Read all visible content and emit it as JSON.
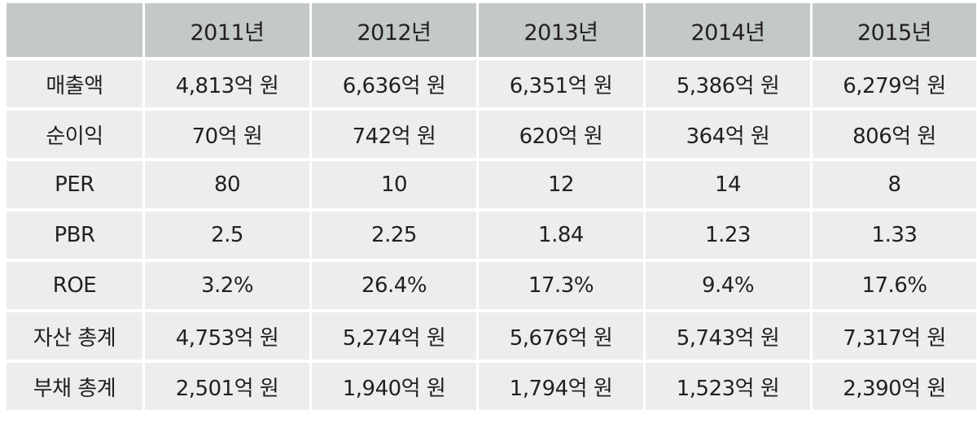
{
  "table": {
    "columns": [
      "",
      "2011년",
      "2012년",
      "2013년",
      "2014년",
      "2015년"
    ],
    "rows": [
      {
        "label": "매출액",
        "values": [
          "4,813억 원",
          "6,636억 원",
          "6,351억 원",
          "5,386억 원",
          "6,279억 원"
        ]
      },
      {
        "label": "순이익",
        "values": [
          "70억 원",
          "742억 원",
          "620억 원",
          "364억 원",
          "806억 원"
        ]
      },
      {
        "label": "PER",
        "values": [
          "80",
          "10",
          "12",
          "14",
          "8"
        ]
      },
      {
        "label": "PBR",
        "values": [
          "2.5",
          "2.25",
          "1.84",
          "1.23",
          "1.33"
        ]
      },
      {
        "label": "ROE",
        "values": [
          "3.2%",
          "26.4%",
          "17.3%",
          "9.4%",
          "17.6%"
        ]
      },
      {
        "label": "자산 총계",
        "values": [
          "4,753억 원",
          "5,274억 원",
          "5,676억 원",
          "5,743억 원",
          "7,317억 원"
        ]
      },
      {
        "label": "부채 총계",
        "values": [
          "2,501억 원",
          "1,940억 원",
          "1,794억 원",
          "1,523억 원",
          "2,390억 원"
        ]
      }
    ]
  }
}
